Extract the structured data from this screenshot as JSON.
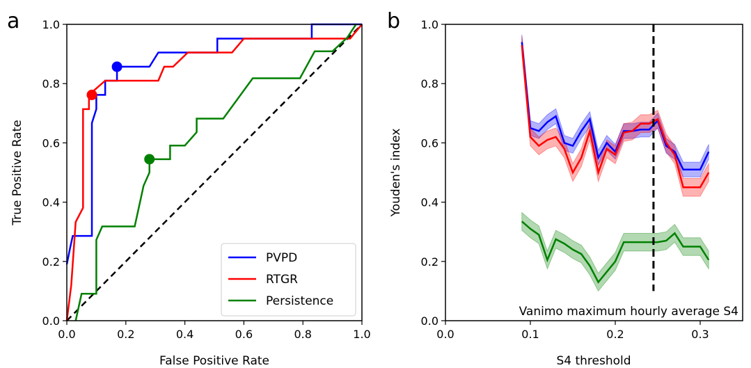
{
  "chart_data": [
    {
      "panel_label": "a",
      "type": "line",
      "title": "",
      "xlabel": "False Positive Rate",
      "ylabel": "True Positive Rate",
      "xlim": [
        0.0,
        1.0
      ],
      "ylim": [
        0.0,
        1.0
      ],
      "xticks": [
        "0.0",
        "0.2",
        "0.4",
        "0.6",
        "0.8",
        "1.0"
      ],
      "yticks": [
        "0.0",
        "0.2",
        "0.4",
        "0.6",
        "0.8",
        "1.0"
      ],
      "grid": false,
      "legend_position": "bottom-right",
      "colors": {
        "PVPD": "#0000ff",
        "RTGR": "#ff0000",
        "Persistence": "#008000",
        "chance": "#000000"
      },
      "series": [
        {
          "name": "PVPD",
          "points": [
            [
              0,
              0.19
            ],
            [
              0.01,
              0.24
            ],
            [
              0.02,
              0.286
            ],
            [
              0.085,
              0.286
            ],
            [
              0.085,
              0.667
            ],
            [
              0.1,
              0.714
            ],
            [
              0.1,
              0.762
            ],
            [
              0.13,
              0.762
            ],
            [
              0.13,
              0.81
            ],
            [
              0.17,
              0.81
            ],
            [
              0.17,
              0.857
            ],
            [
              0.28,
              0.857
            ],
            [
              0.31,
              0.905
            ],
            [
              0.51,
              0.905
            ],
            [
              0.51,
              0.952
            ],
            [
              0.83,
              0.952
            ],
            [
              0.83,
              1.0
            ],
            [
              1.0,
              1.0
            ]
          ],
          "marker": [
            0.17,
            0.857
          ]
        },
        {
          "name": "RTGR",
          "points": [
            [
              0,
              0
            ],
            [
              0.015,
              0.12
            ],
            [
              0.03,
              0.333
            ],
            [
              0.055,
              0.381
            ],
            [
              0.055,
              0.714
            ],
            [
              0.075,
              0.714
            ],
            [
              0.075,
              0.762
            ],
            [
              0.13,
              0.81
            ],
            [
              0.31,
              0.81
            ],
            [
              0.33,
              0.857
            ],
            [
              0.36,
              0.857
            ],
            [
              0.41,
              0.905
            ],
            [
              0.56,
              0.905
            ],
            [
              0.6,
              0.952
            ],
            [
              0.96,
              0.952
            ],
            [
              1.0,
              1.0
            ]
          ],
          "marker": [
            0.085,
            0.762
          ]
        },
        {
          "name": "Persistence",
          "points": [
            [
              0.03,
              0
            ],
            [
              0.05,
              0.091
            ],
            [
              0.1,
              0.091
            ],
            [
              0.1,
              0.273
            ],
            [
              0.12,
              0.318
            ],
            [
              0.23,
              0.318
            ],
            [
              0.25,
              0.409
            ],
            [
              0.26,
              0.455
            ],
            [
              0.28,
              0.5
            ],
            [
              0.28,
              0.545
            ],
            [
              0.35,
              0.545
            ],
            [
              0.35,
              0.591
            ],
            [
              0.4,
              0.591
            ],
            [
              0.44,
              0.636
            ],
            [
              0.44,
              0.682
            ],
            [
              0.53,
              0.682
            ],
            [
              0.63,
              0.818
            ],
            [
              0.79,
              0.818
            ],
            [
              0.84,
              0.909
            ],
            [
              0.9,
              0.909
            ],
            [
              0.95,
              0.955
            ],
            [
              0.98,
              1.0
            ]
          ],
          "marker": [
            0.28,
            0.545
          ]
        }
      ],
      "diagonal": [
        [
          0,
          0
        ],
        [
          1,
          1
        ]
      ]
    },
    {
      "panel_label": "b",
      "type": "line",
      "title": "",
      "xlabel": "S4 threshold",
      "ylabel": "Youden's index",
      "xlim": [
        0.0,
        0.35
      ],
      "ylim": [
        0.0,
        1.0
      ],
      "xticks": [
        "0.0",
        "0.1",
        "0.2",
        "0.3"
      ],
      "yticks": [
        "0.0",
        "0.2",
        "0.4",
        "0.6",
        "0.8",
        "1.0"
      ],
      "grid": false,
      "annotation": "Vanimo maximum hourly average S4",
      "vline_x": 0.245,
      "colors": {
        "PVPD": "#0000ff",
        "RTGR": "#ff0000",
        "Persistence": "#008000",
        "vline": "#000000"
      },
      "x": [
        0.09,
        0.1,
        0.11,
        0.12,
        0.13,
        0.14,
        0.15,
        0.16,
        0.17,
        0.18,
        0.19,
        0.2,
        0.21,
        0.22,
        0.23,
        0.24,
        0.25,
        0.26,
        0.27,
        0.28,
        0.29,
        0.3,
        0.31
      ],
      "series": [
        {
          "name": "PVPD",
          "values": [
            0.94,
            0.65,
            0.64,
            0.67,
            0.69,
            0.6,
            0.59,
            0.64,
            0.68,
            0.55,
            0.6,
            0.57,
            0.64,
            0.64,
            0.645,
            0.645,
            0.675,
            0.59,
            0.57,
            0.51,
            0.51,
            0.51,
            0.57
          ],
          "band": 0.025
        },
        {
          "name": "RTGR",
          "values": [
            0.93,
            0.62,
            0.59,
            0.61,
            0.62,
            0.58,
            0.5,
            0.55,
            0.64,
            0.5,
            0.58,
            0.56,
            0.635,
            0.64,
            0.665,
            0.665,
            0.68,
            0.6,
            0.56,
            0.45,
            0.45,
            0.45,
            0.5
          ],
          "band": 0.03
        },
        {
          "name": "Persistence",
          "values": [
            0.335,
            0.31,
            0.29,
            0.205,
            0.275,
            0.26,
            0.24,
            0.225,
            0.185,
            0.13,
            0.165,
            0.2,
            0.265,
            0.265,
            0.265,
            0.265,
            0.265,
            0.27,
            0.295,
            0.25,
            0.25,
            0.25,
            0.205
          ],
          "band": 0.03
        }
      ]
    }
  ]
}
